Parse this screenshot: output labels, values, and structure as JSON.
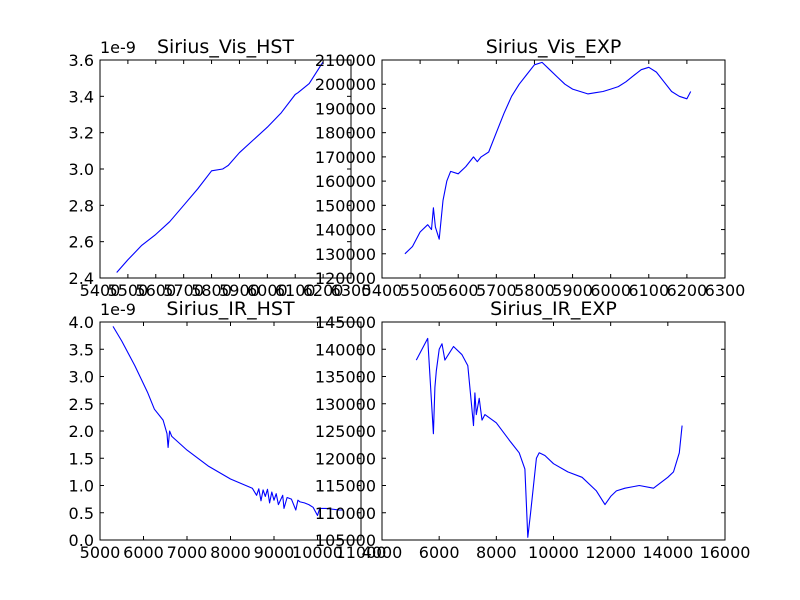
{
  "colors": {
    "line": "#0000ff",
    "axes": "#000000",
    "background": "#ffffff"
  },
  "chart_data": [
    {
      "type": "line",
      "title": "Sirius_Vis_HST",
      "offset_label": "1e-9",
      "xlim": [
        5400,
        6300
      ],
      "ylim": [
        2.4,
        3.6
      ],
      "xticks": [
        5400,
        5500,
        5600,
        5700,
        5800,
        5900,
        6000,
        6100,
        6200,
        6300
      ],
      "yticks": [
        2.4,
        2.6,
        2.8,
        3.0,
        3.2,
        3.4,
        3.6
      ],
      "xtick_labels": [
        "5400",
        "5500",
        "5600",
        "5700",
        "5800",
        "5900",
        "6000",
        "6100",
        "6200",
        "6300"
      ],
      "ytick_labels": [
        "2.4",
        "2.6",
        "2.8",
        "3.0",
        "3.2",
        "3.4",
        "3.6"
      ],
      "grid": false,
      "series": [
        {
          "x": [
            5460,
            5500,
            5550,
            5600,
            5650,
            5700,
            5750,
            5800,
            5840,
            5850,
            5860,
            5900,
            5950,
            6000,
            6050,
            6100,
            6110,
            6150,
            6200
          ],
          "y": [
            2.43,
            2.5,
            2.58,
            2.64,
            2.71,
            2.8,
            2.89,
            2.99,
            3.0,
            3.01,
            3.02,
            3.09,
            3.16,
            3.23,
            3.31,
            3.41,
            3.42,
            3.47,
            3.59
          ]
        }
      ]
    },
    {
      "type": "line",
      "title": "Sirius_Vis_EXP",
      "xlim": [
        5400,
        6300
      ],
      "ylim": [
        120000,
        210000
      ],
      "xticks": [
        5400,
        5500,
        5600,
        5700,
        5800,
        5900,
        6000,
        6100,
        6200,
        6300
      ],
      "yticks": [
        120000,
        130000,
        140000,
        150000,
        160000,
        170000,
        180000,
        190000,
        200000,
        210000
      ],
      "xtick_labels": [
        "5400",
        "5500",
        "5600",
        "5700",
        "5800",
        "5900",
        "6000",
        "6100",
        "6200",
        "6300"
      ],
      "ytick_labels": [
        "120000",
        "130000",
        "140000",
        "150000",
        "160000",
        "170000",
        "180000",
        "190000",
        "200000",
        "210000"
      ],
      "grid": false,
      "series": [
        {
          "x": [
            5460,
            5480,
            5500,
            5520,
            5530,
            5535,
            5540,
            5550,
            5560,
            5570,
            5580,
            5600,
            5620,
            5640,
            5650,
            5660,
            5680,
            5700,
            5720,
            5740,
            5760,
            5780,
            5800,
            5820,
            5840,
            5860,
            5880,
            5900,
            5920,
            5940,
            5960,
            5980,
            6000,
            6020,
            6040,
            6060,
            6080,
            6100,
            6120,
            6140,
            6160,
            6180,
            6200,
            6210
          ],
          "y": [
            130000,
            133000,
            139000,
            142000,
            140000,
            149000,
            141000,
            136000,
            152000,
            160000,
            164000,
            163000,
            166000,
            170000,
            168000,
            170000,
            172000,
            180000,
            188000,
            195000,
            200000,
            204000,
            208000,
            209000,
            206000,
            203000,
            200000,
            198000,
            197000,
            196000,
            196500,
            197000,
            198000,
            199000,
            201000,
            203500,
            206000,
            207000,
            205000,
            201000,
            197000,
            195000,
            194000,
            197000
          ]
        }
      ]
    },
    {
      "type": "line",
      "title": "Sirius_IR_HST",
      "offset_label": "1e-9",
      "xlim": [
        5000,
        11000
      ],
      "ylim": [
        0.0,
        4.0
      ],
      "xticks": [
        5000,
        6000,
        7000,
        8000,
        9000,
        10000,
        11000
      ],
      "yticks": [
        0.0,
        0.5,
        1.0,
        1.5,
        2.0,
        2.5,
        3.0,
        3.5,
        4.0
      ],
      "xtick_labels": [
        "5000",
        "6000",
        "7000",
        "8000",
        "9000",
        "10000",
        "11000"
      ],
      "ytick_labels": [
        "0.0",
        "0.5",
        "1.0",
        "1.5",
        "2.0",
        "2.5",
        "3.0",
        "3.5",
        "4.0"
      ],
      "grid": false,
      "series": [
        {
          "x": [
            5300,
            5500,
            5800,
            6100,
            6250,
            6450,
            6540,
            6565,
            6600,
            6650,
            7000,
            7500,
            8000,
            8500,
            8600,
            8650,
            8700,
            8750,
            8800,
            8850,
            8900,
            8950,
            9000,
            9050,
            9100,
            9200,
            9230,
            9300,
            9400,
            9500,
            9550,
            9600,
            9700,
            9800,
            9900,
            10000,
            10050,
            10200,
            10500,
            10600
          ],
          "y": [
            3.92,
            3.65,
            3.2,
            2.7,
            2.4,
            2.2,
            1.95,
            1.7,
            2.0,
            1.9,
            1.65,
            1.35,
            1.12,
            0.95,
            0.82,
            0.94,
            0.72,
            0.92,
            0.8,
            0.93,
            0.68,
            0.88,
            0.73,
            0.85,
            0.65,
            0.82,
            0.58,
            0.78,
            0.75,
            0.55,
            0.73,
            0.7,
            0.68,
            0.65,
            0.6,
            0.45,
            0.58,
            0.58,
            0.55,
            0.55
          ]
        }
      ]
    },
    {
      "type": "line",
      "title": "Sirius_IR_EXP",
      "xlim": [
        4000,
        16000
      ],
      "ylim": [
        105000,
        145000
      ],
      "xticks": [
        4000,
        6000,
        8000,
        10000,
        12000,
        14000,
        16000
      ],
      "yticks": [
        105000,
        110000,
        115000,
        120000,
        125000,
        130000,
        135000,
        140000,
        145000
      ],
      "xtick_labels": [
        "4000",
        "6000",
        "8000",
        "10000",
        "12000",
        "14000",
        "16000"
      ],
      "ytick_labels": [
        "105000",
        "110000",
        "115000",
        "120000",
        "125000",
        "130000",
        "135000",
        "140000",
        "145000"
      ],
      "grid": false,
      "series": [
        {
          "x": [
            5200,
            5400,
            5600,
            5800,
            5850,
            5900,
            6000,
            6100,
            6200,
            6500,
            6800,
            7000,
            7200,
            7250,
            7300,
            7400,
            7500,
            7600,
            8000,
            8500,
            8800,
            9000,
            9100,
            9200,
            9300,
            9400,
            9500,
            9700,
            10000,
            10500,
            11000,
            11500,
            11800,
            12000,
            12200,
            12500,
            13000,
            13500,
            14000,
            14200,
            14400,
            14500
          ],
          "y": [
            138000,
            140000,
            142000,
            124500,
            133000,
            136000,
            140000,
            141000,
            138000,
            140500,
            139000,
            137000,
            126000,
            132000,
            128000,
            131000,
            127000,
            128000,
            126500,
            123000,
            121000,
            118000,
            105500,
            110000,
            115000,
            120000,
            121000,
            120500,
            119000,
            117500,
            116500,
            114000,
            111500,
            113000,
            114000,
            114500,
            115000,
            114500,
            116500,
            117500,
            121000,
            126000
          ]
        }
      ]
    }
  ]
}
